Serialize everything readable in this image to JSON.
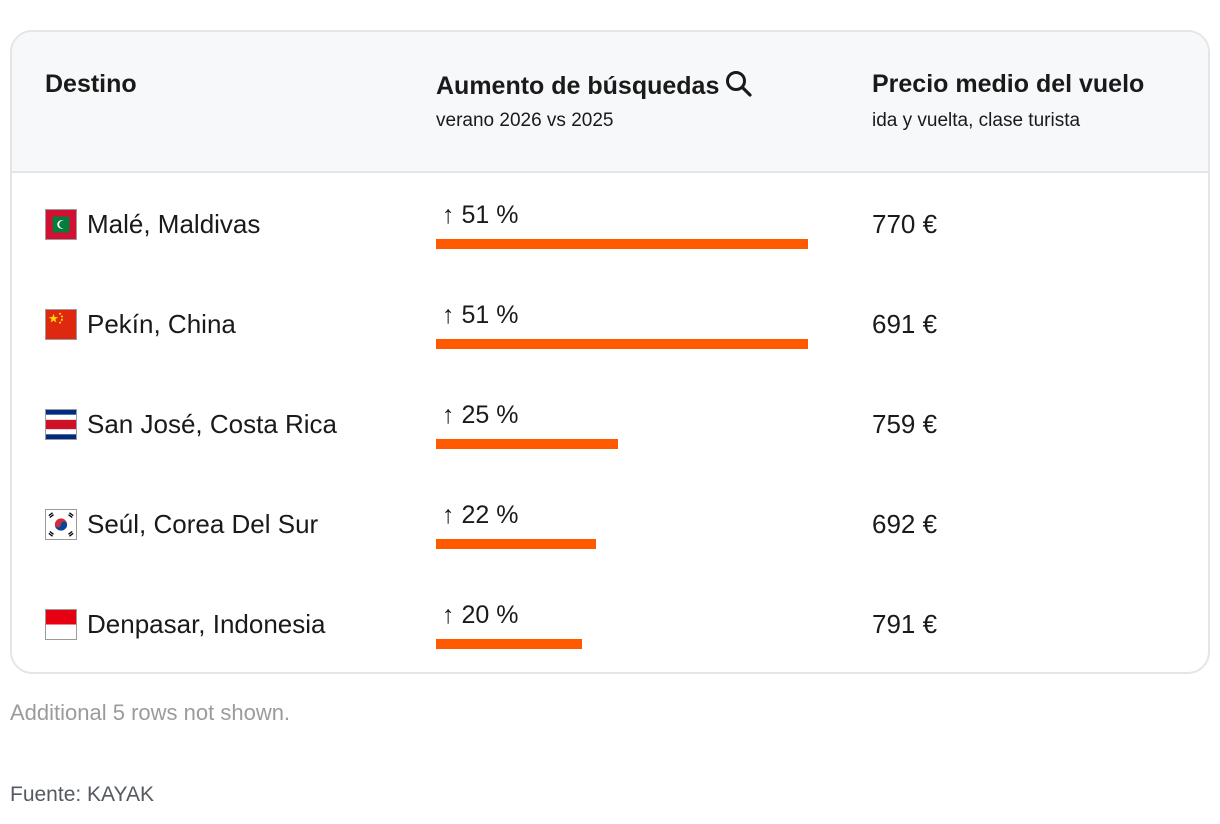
{
  "table": {
    "headers": {
      "destination": "Destino",
      "increase": "Aumento de búsquedas",
      "increase_sub": "verano 2026 vs 2025",
      "price": "Precio medio del vuelo",
      "price_sub": "ida y vuelta, clase turista"
    },
    "rows": [
      {
        "flag": "maldives-flag-icon",
        "destination": "Malé, Maldivas",
        "increase_label": "↑ 51 %",
        "price": "770 €"
      },
      {
        "flag": "china-flag-icon",
        "destination": "Pekín, China",
        "increase_label": "↑ 51 %",
        "price": "691 €"
      },
      {
        "flag": "costa-rica-flag-icon",
        "destination": "San José, Costa Rica",
        "increase_label": "↑ 25 %",
        "price": "759 €"
      },
      {
        "flag": "south-korea-flag-icon",
        "destination": "Seúl, Corea Del Sur",
        "increase_label": "↑ 22 %",
        "price": "692 €"
      },
      {
        "flag": "indonesia-flag-icon",
        "destination": "Denpasar, Indonesia",
        "increase_label": "↑ 20 %",
        "price": "791 €"
      }
    ]
  },
  "chart_data": {
    "type": "table",
    "title": "",
    "columns": [
      "Destino",
      "Aumento de búsquedas (verano 2026 vs 2025)",
      "Precio medio del vuelo (ida y vuelta, clase turista)"
    ],
    "categories": [
      "Malé, Maldivas",
      "Pekín, China",
      "San José, Costa Rica",
      "Seúl, Corea Del Sur",
      "Denpasar, Indonesia"
    ],
    "series": [
      {
        "name": "Aumento de búsquedas (%)",
        "values": [
          51,
          51,
          25,
          22,
          20
        ]
      },
      {
        "name": "Precio medio del vuelo (€)",
        "values": [
          770,
          691,
          759,
          692,
          791
        ]
      }
    ],
    "bar_max": 51
  },
  "footer": {
    "note": "Additional 5 rows not shown.",
    "source": "Fuente: KAYAK"
  },
  "colors": {
    "bar": "#ff5a00",
    "header_bg": "#f7f8fa",
    "border": "#e3e5e8"
  }
}
